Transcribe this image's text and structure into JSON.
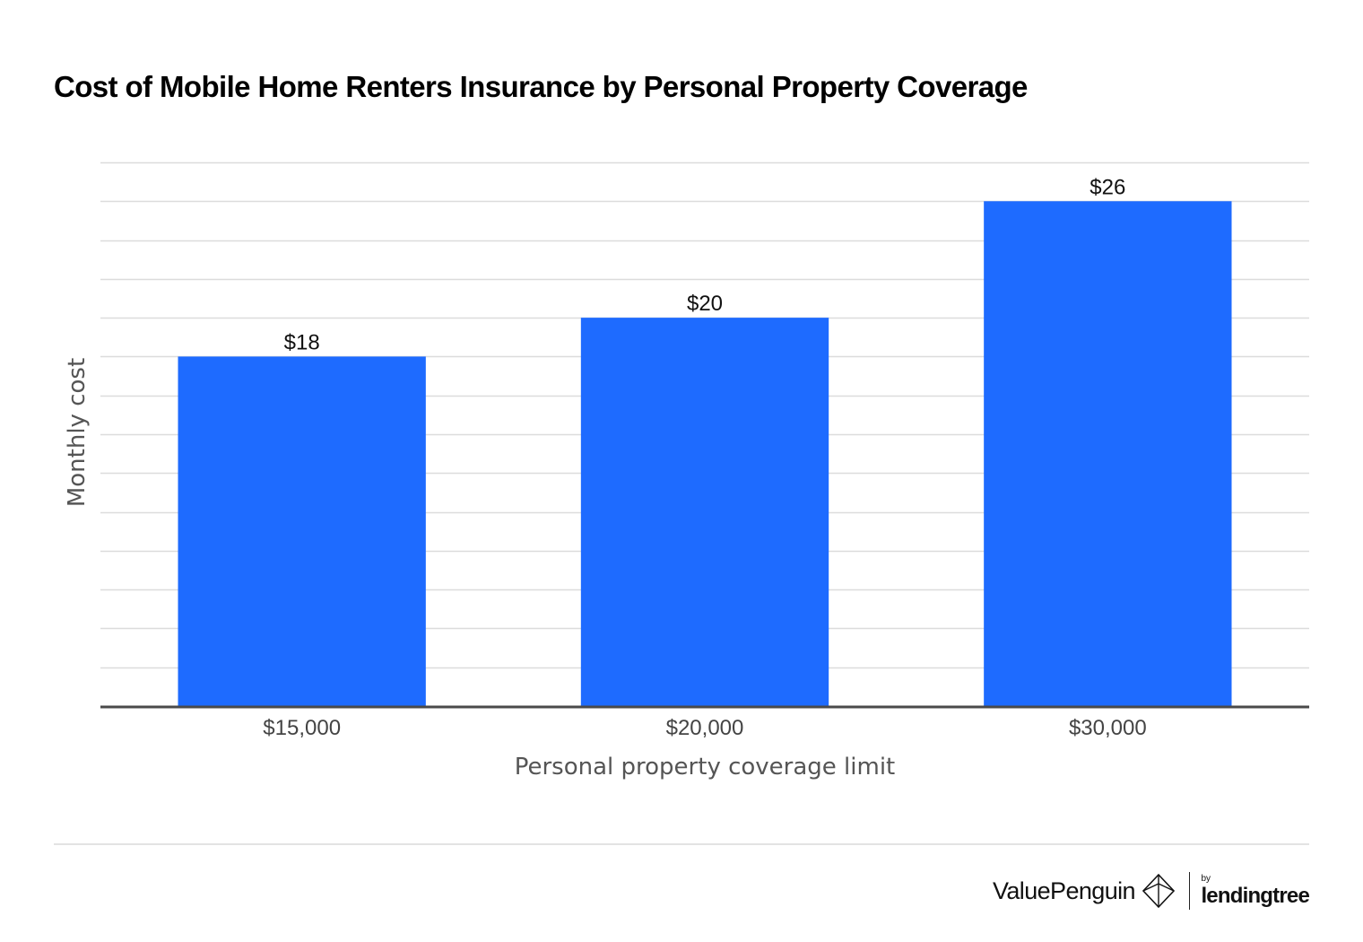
{
  "chart_data": {
    "type": "bar",
    "title": "Cost of Mobile Home Renters Insurance by Personal Property Coverage",
    "xlabel": "Personal property coverage limit",
    "ylabel": "Monthly cost",
    "categories": [
      "$15,000",
      "$20,000",
      "$30,000"
    ],
    "values": [
      18,
      20,
      26
    ],
    "data_labels": [
      "$18",
      "$20",
      "$26"
    ],
    "ylim": [
      0,
      28
    ],
    "grid": true,
    "bar_color": "#1e6bff",
    "axis_color": "#4a4a4a",
    "grid_color": "#dcdcdc"
  },
  "branding": {
    "valuepenguin": "ValuePenguin",
    "by": "by",
    "lendingtree": "lendingtree"
  }
}
